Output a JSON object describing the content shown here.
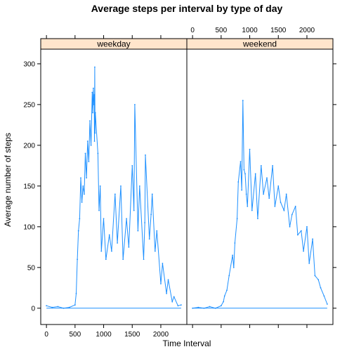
{
  "chart_data": {
    "type": "line",
    "title": "Average steps per interval by type of day",
    "xlabel": "Time Interval",
    "ylabel": "Average number of steps",
    "xlim": [
      -100,
      2455
    ],
    "ylim": [
      -20,
      318
    ],
    "x_ticks": [
      0,
      500,
      1000,
      1500,
      2000
    ],
    "y_ticks": [
      0,
      50,
      100,
      150,
      200,
      250,
      300
    ],
    "x_tick_labels": [
      "0",
      "500",
      "1000",
      "1500",
      "2000"
    ],
    "y_tick_labels": [
      "0",
      "50",
      "100",
      "150",
      "200",
      "250",
      "300"
    ],
    "grid": false,
    "line_color": "#1e90ff",
    "strip_color": "#ffe5cc",
    "panels": [
      {
        "strip_label": "weekday",
        "series_x": [
          0,
          100,
          200,
          300,
          400,
          500,
          520,
          540,
          560,
          580,
          600,
          620,
          640,
          660,
          680,
          700,
          720,
          740,
          760,
          780,
          800,
          810,
          820,
          830,
          835,
          840,
          845,
          850,
          855,
          900,
          920,
          940,
          960,
          1000,
          1040,
          1100,
          1140,
          1200,
          1240,
          1300,
          1340,
          1400,
          1440,
          1500,
          1530,
          1545,
          1600,
          1630,
          1700,
          1720,
          1730,
          1800,
          1830,
          1850,
          1900,
          1930,
          2000,
          2030,
          2100,
          2130,
          2200,
          2230,
          2300,
          2355
        ],
        "series_y": [
          3,
          1,
          2,
          0,
          1,
          4,
          18,
          60,
          95,
          110,
          160,
          130,
          150,
          140,
          190,
          160,
          205,
          180,
          230,
          200,
          265,
          240,
          270,
          250,
          262,
          205,
          296,
          215,
          240,
          190,
          120,
          150,
          70,
          110,
          60,
          90,
          70,
          140,
          80,
          150,
          60,
          110,
          75,
          175,
          120,
          250,
          95,
          150,
          60,
          105,
          188,
          85,
          115,
          140,
          70,
          95,
          30,
          55,
          18,
          35,
          8,
          14,
          3,
          4
        ]
      },
      {
        "strip_label": "weekend",
        "series_x": [
          0,
          100,
          200,
          300,
          400,
          500,
          540,
          560,
          600,
          640,
          700,
          720,
          740,
          780,
          800,
          840,
          860,
          880,
          900,
          920,
          940,
          960,
          1000,
          1040,
          1100,
          1140,
          1200,
          1240,
          1300,
          1340,
          1400,
          1440,
          1500,
          1540,
          1600,
          1640,
          1700,
          1740,
          1800,
          1840,
          1900,
          1940,
          2000,
          2040,
          2100,
          2140,
          2200,
          2240,
          2300,
          2355
        ],
        "series_y": [
          0,
          1,
          0,
          2,
          0,
          3,
          8,
          15,
          22,
          40,
          65,
          50,
          80,
          110,
          155,
          180,
          145,
          255,
          170,
          165,
          140,
          125,
          195,
          120,
          165,
          110,
          175,
          140,
          160,
          135,
          175,
          125,
          150,
          130,
          120,
          140,
          100,
          115,
          125,
          90,
          95,
          70,
          100,
          55,
          85,
          40,
          35,
          25,
          15,
          5
        ]
      }
    ]
  }
}
